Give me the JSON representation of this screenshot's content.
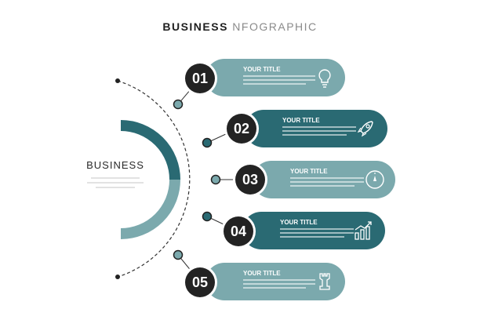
{
  "header": {
    "title_bold": "BUSINESS",
    "title_light": " NFOGRAPHIC"
  },
  "left": {
    "label": "BUSINESS"
  },
  "items": [
    {
      "number": "01",
      "title": "YOUR TITLE",
      "icon": "lightbulb-icon",
      "color": "#7ba9ad"
    },
    {
      "number": "02",
      "title": "YOUR TITLE",
      "icon": "rocket-icon",
      "color": "#2a6a73"
    },
    {
      "number": "03",
      "title": "YOUR TITLE",
      "icon": "compass-icon",
      "color": "#7ba9ad"
    },
    {
      "number": "04",
      "title": "YOUR TITLE",
      "icon": "chart-icon",
      "color": "#2a6a73"
    },
    {
      "number": "05",
      "title": "YOUR TITLE",
      "icon": "chess-rook-icon",
      "color": "#7ba9ad"
    }
  ]
}
